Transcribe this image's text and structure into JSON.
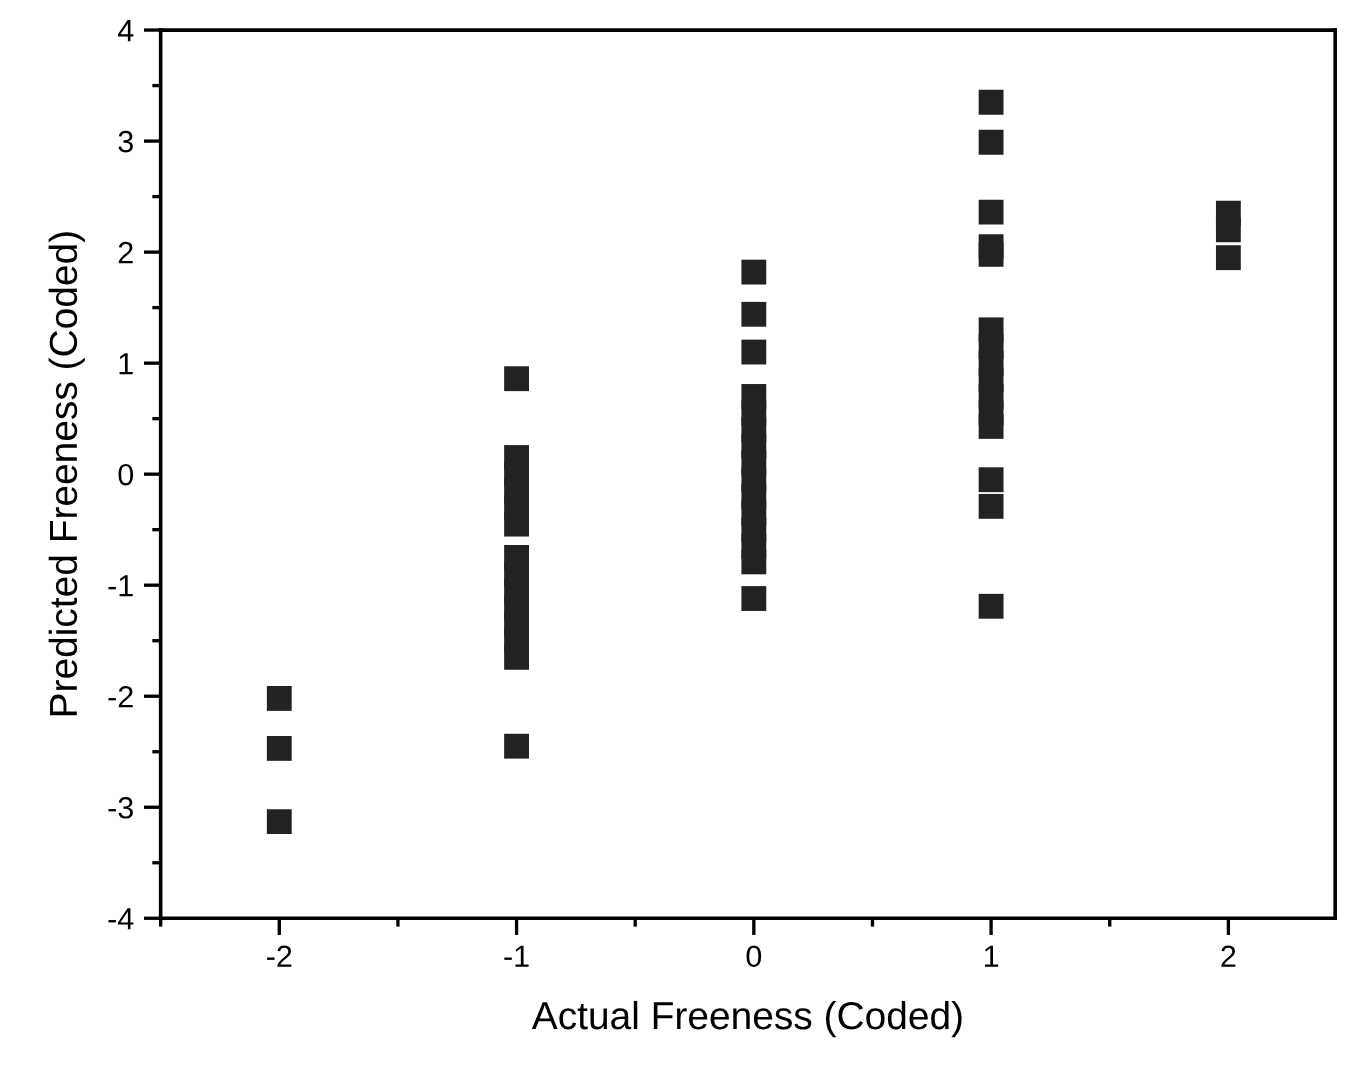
{
  "chart_data": {
    "type": "scatter",
    "xlabel": "Actual Freeness (Coded)",
    "ylabel": "Predicted Freeness (Coded)",
    "x": [
      -2,
      -2,
      -2,
      -1,
      -1,
      -1,
      -1,
      -1,
      -1,
      -1,
      -1,
      -1,
      -1,
      -1,
      -1,
      -1,
      -1,
      0,
      0,
      0,
      0,
      0,
      0,
      0,
      0,
      0,
      0,
      0,
      0,
      0,
      0,
      0,
      1,
      1,
      1,
      1,
      1,
      1,
      1,
      1,
      1,
      1,
      1,
      1,
      1,
      1,
      1,
      2,
      2,
      2
    ],
    "values": [
      -2.02,
      -2.47,
      -3.13,
      0.86,
      0.15,
      0.0,
      -0.15,
      -0.3,
      -0.45,
      -0.75,
      -0.9,
      -1.05,
      -1.2,
      -1.35,
      -1.5,
      -1.65,
      -2.45,
      1.82,
      1.44,
      1.1,
      0.7,
      0.55,
      0.4,
      0.25,
      0.1,
      -0.05,
      -0.2,
      -0.35,
      -0.5,
      -0.65,
      -0.79,
      -1.12,
      3.35,
      2.99,
      2.36,
      2.05,
      1.98,
      1.3,
      1.15,
      1.0,
      0.85,
      0.7,
      0.55,
      0.43,
      -0.05,
      -0.29,
      -1.19,
      2.35,
      2.2,
      1.95
    ],
    "color": "#222222",
    "marker": "square",
    "xlim": [
      -2.5,
      2.45
    ],
    "xticks": [
      -2,
      -1,
      0,
      1,
      2
    ],
    "ylim": [
      -4,
      4
    ],
    "yticks": [
      -4,
      -3,
      -2,
      -1,
      0,
      1,
      2,
      3,
      4
    ],
    "grid": false,
    "legend": false
  }
}
